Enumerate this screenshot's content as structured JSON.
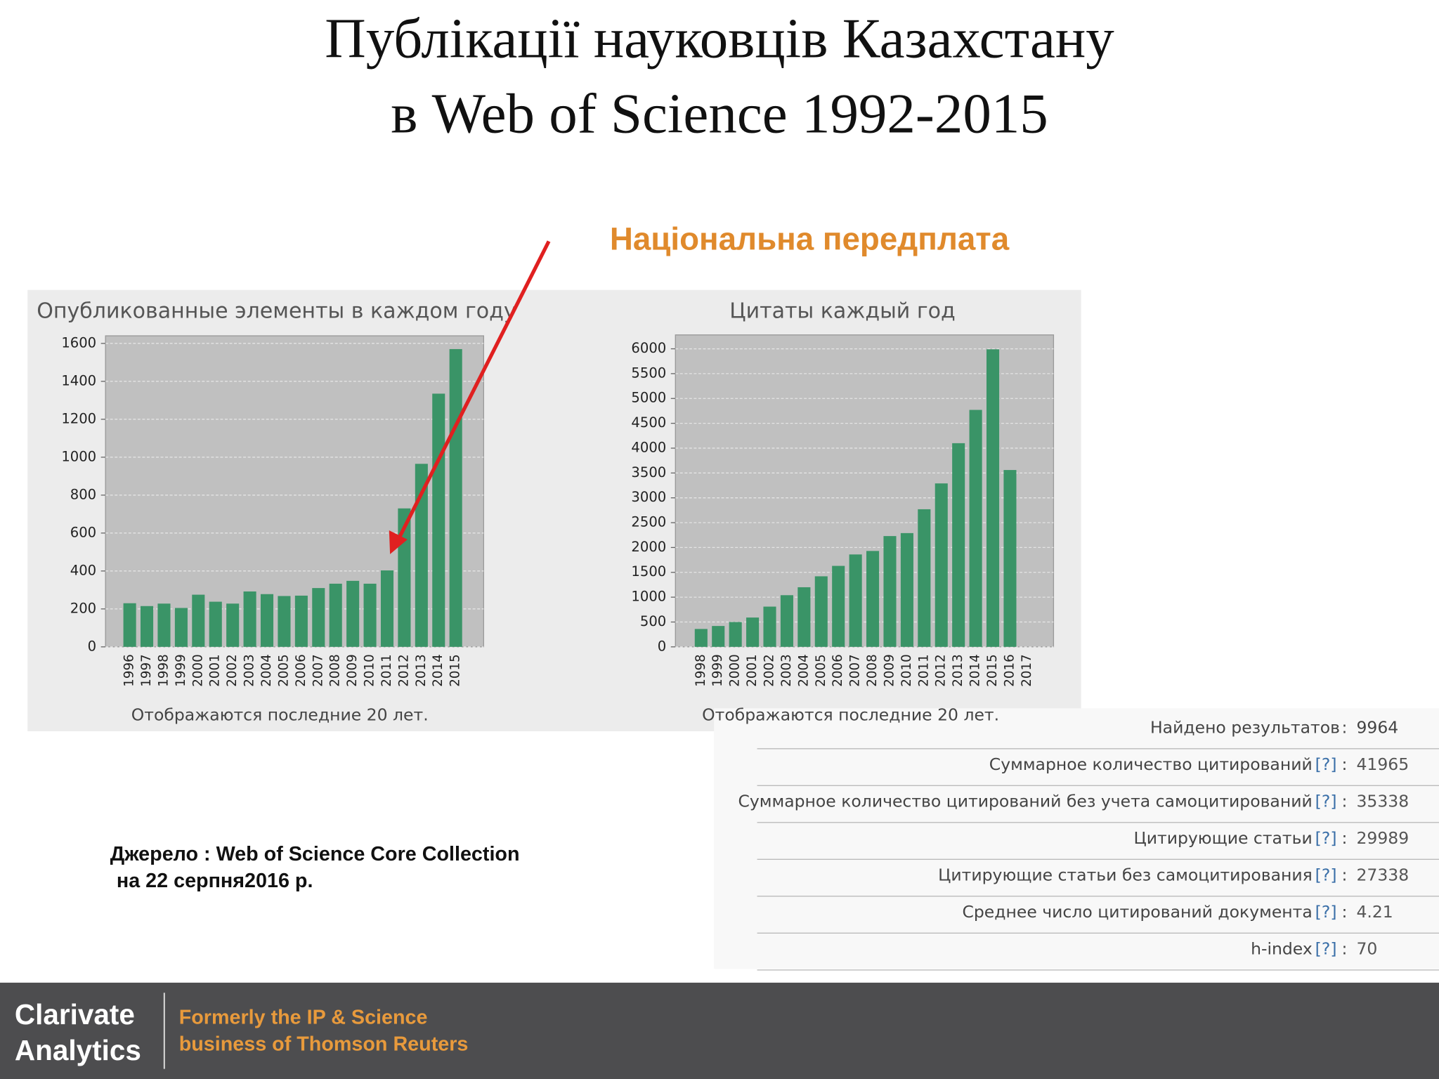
{
  "title": [
    "Публікації науковців Казахстану",
    "в Web of Science 1992-2015"
  ],
  "annotation": "Національна передплата",
  "chart_data": [
    {
      "type": "bar",
      "title": "Опубликованные элементы в каждом году",
      "categories": [
        "1996",
        "1997",
        "1998",
        "1999",
        "2000",
        "2001",
        "2002",
        "2003",
        "2004",
        "2005",
        "2006",
        "2007",
        "2008",
        "2009",
        "2010",
        "2011",
        "2012",
        "2013",
        "2014",
        "2015"
      ],
      "values": [
        230,
        215,
        228,
        205,
        275,
        238,
        228,
        292,
        278,
        268,
        270,
        310,
        333,
        348,
        333,
        403,
        730,
        965,
        1335,
        1570
      ],
      "color": "#3a9467",
      "ylim": [
        0,
        1640
      ],
      "yticks": [
        0,
        200,
        400,
        600,
        800,
        1000,
        1200,
        1400,
        1600
      ],
      "grid": true,
      "note": "Отображаются последние 20 лет."
    },
    {
      "type": "bar",
      "title": "Цитаты каждый год",
      "categories": [
        "1998",
        "1999",
        "2000",
        "2001",
        "2002",
        "2003",
        "2004",
        "2005",
        "2006",
        "2007",
        "2008",
        "2009",
        "2010",
        "2011",
        "2012",
        "2013",
        "2014",
        "2015",
        "2016",
        "2017"
      ],
      "values": [
        360,
        420,
        500,
        590,
        810,
        1040,
        1200,
        1420,
        1630,
        1860,
        1930,
        2230,
        2290,
        2770,
        3290,
        4100,
        4770,
        5990,
        3560,
        null
      ],
      "color": "#3a9467",
      "ylim": [
        0,
        6280
      ],
      "yticks": [
        0,
        500,
        1000,
        1500,
        2000,
        2500,
        3000,
        3500,
        4000,
        4500,
        5000,
        5500,
        6000
      ],
      "grid": true,
      "note": "Отображаются последние 20 лет."
    }
  ],
  "table": {
    "sep": ":",
    "rows": [
      {
        "label": "Найдено результатов",
        "value": "9964"
      },
      {
        "label": "Суммарное количество цитирований",
        "help": "[?]",
        "value": "41965"
      },
      {
        "label": "Суммарное количество цитирований без учета самоцитирований",
        "help": "[?]",
        "value": "35338"
      },
      {
        "label": "Цитирующие статьи",
        "help": "[?]",
        "value": "29989"
      },
      {
        "label": "Цитирующие статьи без самоцитирования",
        "help": "[?]",
        "value": "27338"
      },
      {
        "label": "Среднее число цитирований документа",
        "help": "[?]",
        "value": "4.21"
      },
      {
        "label": "h-index",
        "help": "[?]",
        "value": "70"
      }
    ]
  },
  "source": [
    "Джерело : Web of Science Core Collection",
    "на 22 серпня2016 р."
  ],
  "footer": {
    "brand": [
      "Clarivate",
      "Analytics"
    ],
    "tagline": [
      "Formerly the IP & Science",
      "business of Thomson Reuters"
    ]
  }
}
